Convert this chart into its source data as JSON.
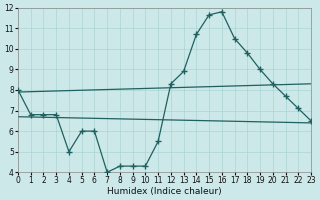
{
  "xlabel": "Humidex (Indice chaleur)",
  "bg_color": "#cce8e8",
  "grid_color": "#aad4d4",
  "line_color": "#206060",
  "xlim": [
    0,
    23
  ],
  "ylim": [
    4,
    12
  ],
  "xticks": [
    0,
    1,
    2,
    3,
    4,
    5,
    6,
    7,
    8,
    9,
    10,
    11,
    12,
    13,
    14,
    15,
    16,
    17,
    18,
    19,
    20,
    21,
    22,
    23
  ],
  "yticks": [
    4,
    5,
    6,
    7,
    8,
    9,
    10,
    11,
    12
  ],
  "line1_x": [
    0,
    1,
    2,
    3,
    4,
    5,
    6,
    7,
    8,
    9,
    10,
    11,
    12,
    13,
    14,
    15,
    16,
    17,
    18,
    19,
    20,
    21,
    22,
    23
  ],
  "line1_y": [
    8.0,
    6.8,
    6.8,
    6.8,
    5.0,
    6.0,
    6.0,
    4.0,
    4.3,
    4.3,
    4.3,
    5.5,
    8.3,
    8.9,
    10.7,
    11.65,
    11.8,
    10.5,
    9.8,
    9.0,
    8.3,
    7.7,
    7.1,
    6.5
  ],
  "line2_x": [
    0,
    23
  ],
  "line2_y": [
    6.7,
    6.4
  ],
  "line3_x": [
    0,
    23
  ],
  "line3_y": [
    7.9,
    8.3
  ]
}
